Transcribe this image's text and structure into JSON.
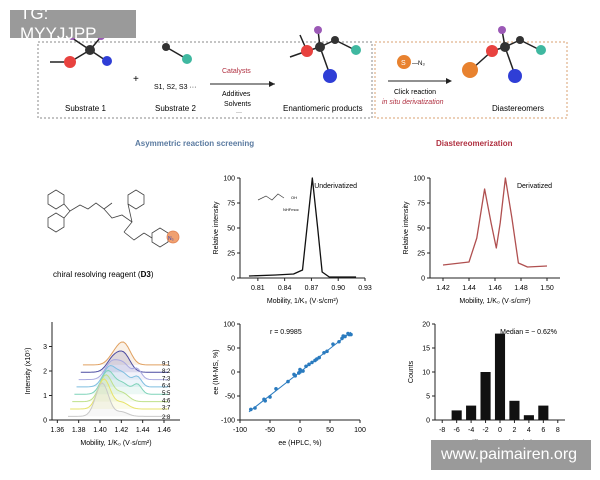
{
  "watermark_top": "TG: MYYJJPP",
  "watermark_bottom": "www.paimairen.org",
  "scheme": {
    "substrate1": "Substrate 1",
    "plus": "+",
    "substrate2": "Substrate 2",
    "s_list": "S1, S2, S3 ···",
    "catalysts": "Catalysts",
    "additives": "Additives",
    "solvents": "Solvents",
    "ellipsis": "···",
    "products": "Enantiomeric products",
    "azide_s": "S",
    "azide_n3": "—N₃",
    "click": "Click reaction",
    "in_situ": "in situ derivatization",
    "diastereomers": "Diastereomers",
    "section_left": "Asymmetric reaction screening",
    "section_right": "Diastereomerization",
    "colors": {
      "red": "#e8423f",
      "purple": "#9b59b6",
      "blue": "#2f3ed6",
      "teal": "#3fb8a0",
      "orange": "#e8822f",
      "dark": "#333333",
      "accent_red": "#b03040",
      "section_blue": "#5a7aa0"
    }
  },
  "reagent": {
    "caption": "chiral resolving reagent (",
    "caption_bold": "D3",
    "caption_end": ")",
    "n3": "N₃",
    "inset_label": "NHFmoc",
    "oh": "OH"
  },
  "chart_data": [
    {
      "type": "line",
      "annotation": "Underivatized",
      "xlabel": "Mobility, 1/K₀ (V·s/cm²)",
      "ylabel": "Relative intensity",
      "xlim": [
        0.79,
        0.93
      ],
      "ylim": [
        0,
        100
      ],
      "xticks": [
        "0.81",
        "0.84",
        "0.87",
        "0.90",
        "0.93"
      ],
      "yticks": [
        "0",
        "25",
        "50",
        "75",
        "100"
      ],
      "series": [
        {
          "color": "#111111",
          "x": [
            0.8,
            0.83,
            0.85,
            0.86,
            0.865,
            0.871,
            0.877,
            0.882,
            0.89,
            0.92
          ],
          "y": [
            2,
            3,
            4,
            8,
            50,
            100,
            50,
            6,
            1,
            1
          ]
        }
      ]
    },
    {
      "type": "line",
      "annotation": "Derivatized",
      "xlabel": "Mobility, 1/K₀ (V·s/cm²)",
      "ylabel": "Relative intensity",
      "xlim": [
        1.41,
        1.51
      ],
      "ylim": [
        0,
        100
      ],
      "xticks": [
        "1.42",
        "1.44",
        "1.46",
        "1.48",
        "1.50"
      ],
      "yticks": [
        "0",
        "25",
        "50",
        "75",
        "100"
      ],
      "series": [
        {
          "color": "#b05050",
          "x": [
            1.42,
            1.44,
            1.446,
            1.452,
            1.457,
            1.461,
            1.464,
            1.468,
            1.473,
            1.478,
            1.485,
            1.5
          ],
          "y": [
            13,
            16,
            40,
            89,
            55,
            30,
            55,
            100,
            60,
            15,
            11,
            12
          ]
        }
      ]
    },
    {
      "type": "line",
      "xlabel": "Mobility, 1/K₀ (V·s/cm²)",
      "ylabel": "Intensity (x10⁵)",
      "xlim": [
        1.355,
        1.475
      ],
      "ylim": [
        0,
        4
      ],
      "xticks": [
        "1.36",
        "1.38",
        "1.40",
        "1.42",
        "1.44",
        "1.46"
      ],
      "yticks": [
        "0",
        "1",
        "2",
        "3"
      ],
      "series": [
        {
          "name": "2:8",
          "color": "#c9c9c9",
          "offset": 0.0
        },
        {
          "name": "3:7",
          "color": "#e7e36a",
          "offset": 0.3
        },
        {
          "name": "4:6",
          "color": "#bfe08a",
          "offset": 0.6
        },
        {
          "name": "5:5",
          "color": "#7fd3b9",
          "offset": 0.9
        },
        {
          "name": "6:4",
          "color": "#7fbfe0",
          "offset": 1.2
        },
        {
          "name": "7:3",
          "color": "#a9a9e0",
          "offset": 1.5
        },
        {
          "name": "8:2",
          "color": "#4a4aa0",
          "offset": 1.8
        },
        {
          "name": "9:1",
          "color": "#e0a060",
          "offset": 2.1
        }
      ]
    },
    {
      "type": "scatter",
      "annotation": "r = 0.9985",
      "xlabel": "ee (HPLC, %)",
      "ylabel": "ee (IM-MS, %)",
      "xlim": [
        -100,
        100
      ],
      "ylim": [
        -100,
        100
      ],
      "xticks": [
        "-100",
        "-50",
        "0",
        "50",
        "100"
      ],
      "yticks": [
        "-100",
        "-50",
        "0",
        "50",
        "100"
      ],
      "color": "#2a7bbf",
      "x": [
        -82,
        -75,
        -60,
        -58,
        -50,
        -40,
        -20,
        -10,
        -8,
        -2,
        0,
        0,
        1,
        5,
        10,
        15,
        20,
        25,
        28,
        32,
        40,
        45,
        55,
        65,
        70,
        72,
        75,
        80,
        82,
        85
      ],
      "y": [
        -78,
        -75,
        -57,
        -60,
        -52,
        -35,
        -20,
        -5,
        -8,
        -2,
        0,
        5,
        3,
        2,
        12,
        16,
        20,
        24,
        27,
        30,
        40,
        43,
        58,
        63,
        70,
        75,
        74,
        80,
        78,
        78
      ],
      "fit": [
        [
          -85,
          -83
        ],
        [
          85,
          83
        ]
      ]
    },
    {
      "type": "bar",
      "annotation": "Median = − 0.62%",
      "xlabel": "Differences of ee (%)",
      "ylabel": "Counts",
      "xlim": [
        -9,
        9
      ],
      "ylim": [
        0,
        20
      ],
      "xticks": [
        "-8",
        "-6",
        "-4",
        "-2",
        "0",
        "2",
        "4",
        "6",
        "8"
      ],
      "yticks": [
        "0",
        "5",
        "10",
        "15",
        "20"
      ],
      "categories": [
        -6,
        -4,
        -2,
        0,
        2,
        4,
        6
      ],
      "values": [
        2,
        3,
        10,
        18,
        4,
        1,
        3
      ]
    }
  ]
}
